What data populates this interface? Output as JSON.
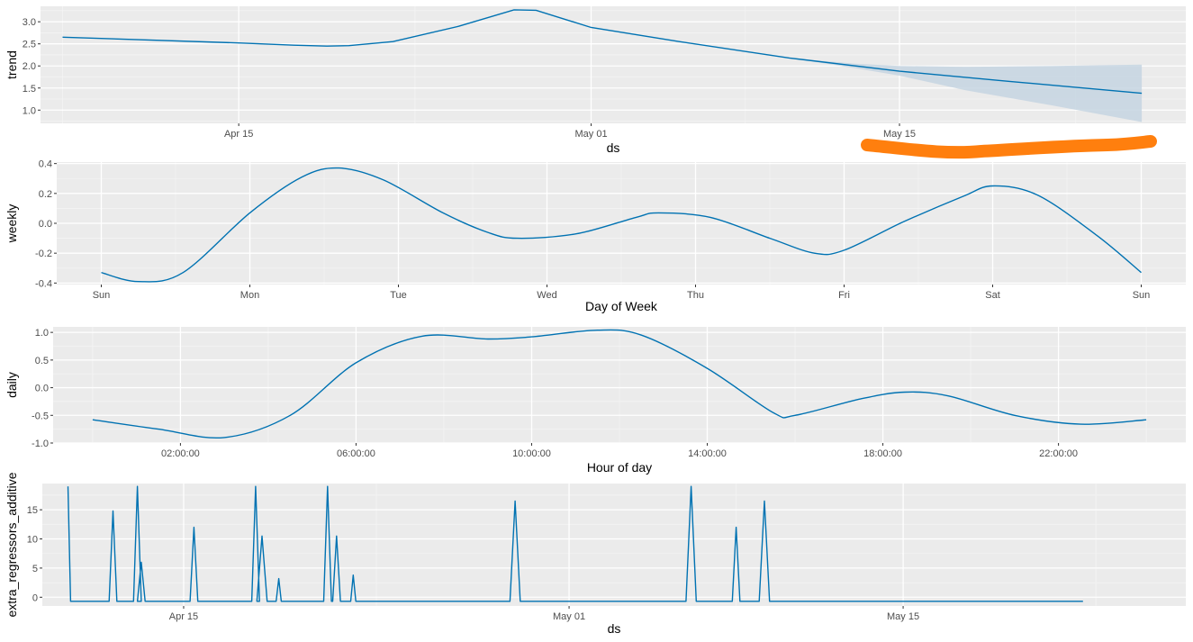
{
  "colors": {
    "panel": "#EBEBEB",
    "grid_major": "#FFFFFF",
    "grid_minor": "#F4F4F4",
    "line": "#0072B2",
    "band": "#C5D5E2",
    "annotation": "#FF7F0E"
  },
  "chart_data": [
    {
      "type": "line",
      "name": "trend-panel",
      "xlabel": "ds",
      "ylabel": "trend",
      "x_unit": "date",
      "xlim": [
        "2024-04-06",
        "2024-05-28"
      ],
      "ylim": [
        0.7,
        3.35
      ],
      "xticks": [
        {
          "value": "2024-04-15",
          "label": "Apr 15"
        },
        {
          "value": "2024-05-01",
          "label": "May 01"
        },
        {
          "value": "2024-05-15",
          "label": "May 15"
        }
      ],
      "yticks": [
        {
          "value": 1.0,
          "label": "1.0"
        },
        {
          "value": 1.5,
          "label": "1.5"
        },
        {
          "value": 2.0,
          "label": "2.0"
        },
        {
          "value": 2.5,
          "label": "2.5"
        },
        {
          "value": 3.0,
          "label": "3.0"
        }
      ],
      "series": [
        {
          "x": [
            "2024-04-07",
            "2024-04-15",
            "2024-04-17.5",
            "2024-04-19",
            "2024-04-20",
            "2024-04-22",
            "2024-04-25",
            "2024-04-27.5",
            "2024-04-28.5",
            "2024-05-01",
            "2024-05-05",
            "2024-05-10",
            "2024-05-15",
            "2024-05-20",
            "2024-05-26"
          ],
          "y": [
            2.65,
            2.52,
            2.47,
            2.45,
            2.46,
            2.55,
            2.9,
            3.27,
            3.26,
            2.87,
            2.55,
            2.18,
            1.88,
            1.65,
            1.38
          ]
        }
      ],
      "uncertainty_band": {
        "x": [
          "2024-05-10",
          "2024-05-13",
          "2024-05-15",
          "2024-05-18",
          "2024-05-22",
          "2024-05-26"
        ],
        "upper": [
          2.18,
          2.05,
          2.0,
          1.98,
          2.0,
          2.03
        ],
        "lower": [
          2.18,
          1.95,
          1.78,
          1.45,
          1.1,
          0.73
        ]
      }
    },
    {
      "type": "line",
      "name": "weekly-panel",
      "xlabel": "Day of Week",
      "ylabel": "weekly",
      "x_unit": "day",
      "xlim": [
        -0.3,
        7.3
      ],
      "ylim": [
        -0.41,
        0.41
      ],
      "xticks": [
        {
          "value": 0,
          "label": "Sun"
        },
        {
          "value": 1,
          "label": "Mon"
        },
        {
          "value": 2,
          "label": "Tue"
        },
        {
          "value": 3,
          "label": "Wed"
        },
        {
          "value": 4,
          "label": "Thu"
        },
        {
          "value": 5,
          "label": "Fri"
        },
        {
          "value": 6,
          "label": "Sat"
        },
        {
          "value": 7,
          "label": "Sun"
        }
      ],
      "yticks": [
        {
          "value": -0.4,
          "label": "-0.4"
        },
        {
          "value": -0.2,
          "label": "-0.2"
        },
        {
          "value": 0.0,
          "label": "0.0"
        },
        {
          "value": 0.2,
          "label": "0.2"
        },
        {
          "value": 0.4,
          "label": "0.4"
        }
      ],
      "series": [
        {
          "x": [
            0,
            0.25,
            0.55,
            1.0,
            1.35,
            1.6,
            1.9,
            2.3,
            2.6,
            2.8,
            3.2,
            3.6,
            3.75,
            4.1,
            4.5,
            4.8,
            5.0,
            5.4,
            5.8,
            6.0,
            6.3,
            6.7,
            7.0
          ],
          "y": [
            -0.33,
            -0.39,
            -0.33,
            0.07,
            0.31,
            0.37,
            0.29,
            0.07,
            -0.06,
            -0.1,
            -0.07,
            0.04,
            0.07,
            0.04,
            -0.1,
            -0.2,
            -0.18,
            0.01,
            0.18,
            0.25,
            0.19,
            -0.08,
            -0.33
          ]
        }
      ]
    },
    {
      "type": "line",
      "name": "daily-panel",
      "xlabel": "Hour of day",
      "ylabel": "daily",
      "x_unit": "hour",
      "xlim": [
        -0.9,
        24.9
      ],
      "ylim": [
        -1.0,
        1.1
      ],
      "xticks": [
        {
          "value": 2,
          "label": "02:00:00"
        },
        {
          "value": 6,
          "label": "06:00:00"
        },
        {
          "value": 10,
          "label": "10:00:00"
        },
        {
          "value": 14,
          "label": "14:00:00"
        },
        {
          "value": 18,
          "label": "18:00:00"
        },
        {
          "value": 22,
          "label": "22:00:00"
        }
      ],
      "yticks": [
        {
          "value": -1.0,
          "label": "-1.0"
        },
        {
          "value": -0.5,
          "label": "-0.5"
        },
        {
          "value": 0.0,
          "label": "0.0"
        },
        {
          "value": 0.5,
          "label": "0.5"
        },
        {
          "value": 1.0,
          "label": "1.0"
        }
      ],
      "series": [
        {
          "x": [
            0,
            1.5,
            3.0,
            4.5,
            6.0,
            7.5,
            9.0,
            10.0,
            11.5,
            12.5,
            14.0,
            15.5,
            16.0,
            17.5,
            18.5,
            19.5,
            21.0,
            22.5,
            24.0
          ],
          "y": [
            -0.58,
            -0.75,
            -0.9,
            -0.5,
            0.45,
            0.93,
            0.88,
            0.92,
            1.04,
            0.95,
            0.35,
            -0.45,
            -0.5,
            -0.2,
            -0.08,
            -0.15,
            -0.5,
            -0.66,
            -0.58
          ]
        }
      ]
    },
    {
      "type": "line",
      "name": "extra-regressors-panel",
      "xlabel": "ds",
      "ylabel": "extra_regressors_additive",
      "x_unit": "date",
      "xlim": [
        -2.0,
        42.5
      ],
      "ylim": [
        -1.5,
        19.5
      ],
      "xticks": [
        {
          "value": 3.5,
          "label": "Apr 15"
        },
        {
          "value": 18.5,
          "label": "May 01"
        },
        {
          "value": 31.5,
          "label": "May 15"
        }
      ],
      "yticks": [
        {
          "value": 0,
          "label": "0"
        },
        {
          "value": 5,
          "label": "5"
        },
        {
          "value": 10,
          "label": "10"
        },
        {
          "value": 15,
          "label": "15"
        }
      ],
      "baseline": -0.7,
      "x_start": -1.0,
      "x_end": 38.5,
      "spikes": [
        {
          "x": -1.0,
          "y": 19.0,
          "w": 0.1
        },
        {
          "x": 0.75,
          "y": 14.8,
          "w": 0.15
        },
        {
          "x": 1.7,
          "y": 19.0,
          "w": 0.15
        },
        {
          "x": 1.85,
          "y": 6.0,
          "w": 0.15
        },
        {
          "x": 3.9,
          "y": 12.0,
          "w": 0.15
        },
        {
          "x": 6.3,
          "y": 19.0,
          "w": 0.15
        },
        {
          "x": 6.55,
          "y": 10.5,
          "w": 0.2
        },
        {
          "x": 7.2,
          "y": 3.2,
          "w": 0.1
        },
        {
          "x": 9.1,
          "y": 19.0,
          "w": 0.15
        },
        {
          "x": 9.45,
          "y": 10.5,
          "w": 0.15
        },
        {
          "x": 10.1,
          "y": 3.8,
          "w": 0.1
        },
        {
          "x": 16.4,
          "y": 16.5,
          "w": 0.2
        },
        {
          "x": 23.25,
          "y": 19.0,
          "w": 0.2
        },
        {
          "x": 25.0,
          "y": 12.0,
          "w": 0.15
        },
        {
          "x": 26.1,
          "y": 16.5,
          "w": 0.2
        }
      ]
    }
  ]
}
